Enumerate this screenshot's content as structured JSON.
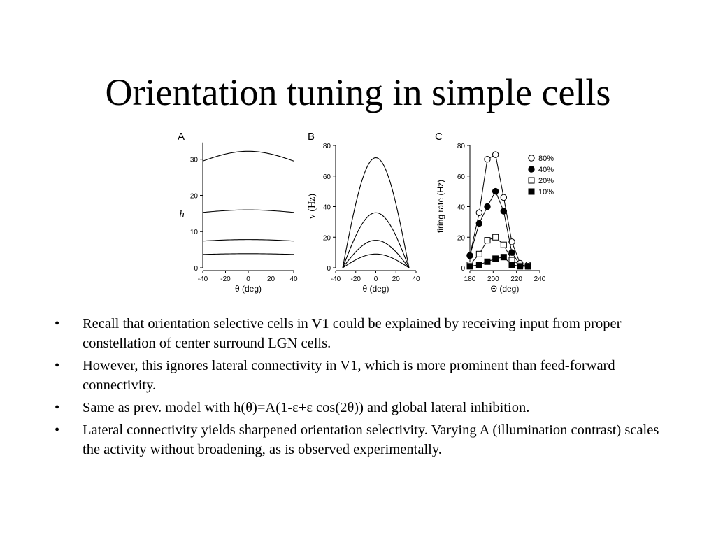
{
  "title": "Orientation tuning in simple cells",
  "chart_data": [
    {
      "panel": "A",
      "type": "line",
      "xlabel": "θ (deg)",
      "ylabel": "h",
      "x_ticks": [
        -40,
        -20,
        0,
        20,
        40
      ],
      "y_ticks": [
        0,
        10,
        20,
        30
      ],
      "xlim": [
        -40,
        40
      ],
      "ylim": [
        0,
        34
      ],
      "x": [
        -40,
        -20,
        0,
        20,
        40
      ],
      "series": [
        {
          "values": [
            29.5,
            31.6,
            32.2,
            31.6,
            29.5
          ]
        },
        {
          "values": [
            15.3,
            15.9,
            16.0,
            15.9,
            15.3
          ]
        },
        {
          "values": [
            7.4,
            7.7,
            7.8,
            7.7,
            7.4
          ]
        },
        {
          "values": [
            3.7,
            3.9,
            3.9,
            3.9,
            3.7
          ]
        }
      ]
    },
    {
      "panel": "B",
      "type": "line",
      "xlabel": "θ (deg)",
      "ylabel": "v (Hz)",
      "x_ticks": [
        -40,
        -20,
        0,
        20,
        40
      ],
      "y_ticks": [
        0,
        20,
        40,
        60,
        80
      ],
      "xlim": [
        -40,
        40
      ],
      "ylim": [
        0,
        80
      ],
      "series": [
        {
          "peak": 72,
          "half_width": 33
        },
        {
          "peak": 36,
          "half_width": 33
        },
        {
          "peak": 18,
          "half_width": 33
        },
        {
          "peak": 9,
          "half_width": 33
        }
      ]
    },
    {
      "panel": "C",
      "type": "scatter",
      "xlabel": "Θ (deg)",
      "ylabel": "firing rate (Hz)",
      "x_ticks": [
        180,
        200,
        220,
        240
      ],
      "y_ticks": [
        0,
        20,
        40,
        60,
        80
      ],
      "xlim": [
        180,
        240
      ],
      "ylim": [
        0,
        80
      ],
      "legend_position": "top-right",
      "x": [
        180,
        188,
        195,
        202,
        209,
        216,
        223,
        230
      ],
      "series": [
        {
          "name": "80%",
          "marker": "open-circle",
          "values": [
            8,
            36,
            71,
            74,
            46,
            17,
            3,
            2
          ]
        },
        {
          "name": "40%",
          "marker": "filled-circle",
          "values": [
            8,
            29,
            40,
            50,
            37,
            10,
            2,
            1
          ]
        },
        {
          "name": "20%",
          "marker": "open-square",
          "values": [
            2,
            9,
            18,
            20,
            15,
            5,
            2,
            1
          ]
        },
        {
          "name": "10%",
          "marker": "filled-square",
          "values": [
            1,
            2,
            4,
            6,
            7,
            2,
            1,
            1
          ]
        }
      ]
    }
  ],
  "bullets": [
    "Recall that orientation selective cells in V1 could be explained by receiving input from proper constellation of center surround LGN cells.",
    "However, this ignores lateral connectivity in V1, which is more prominent than feed-forward connectivity.",
    "Same as prev. model with h(θ)=A(1-ε+ε cos(2θ)) and global lateral inhibition.",
    "Lateral connectivity yields sharpened orientation selectivity. Varying A (illumination contrast) scales the activity without broadening, as is observed experimentally."
  ],
  "bullet_symbol": "•"
}
